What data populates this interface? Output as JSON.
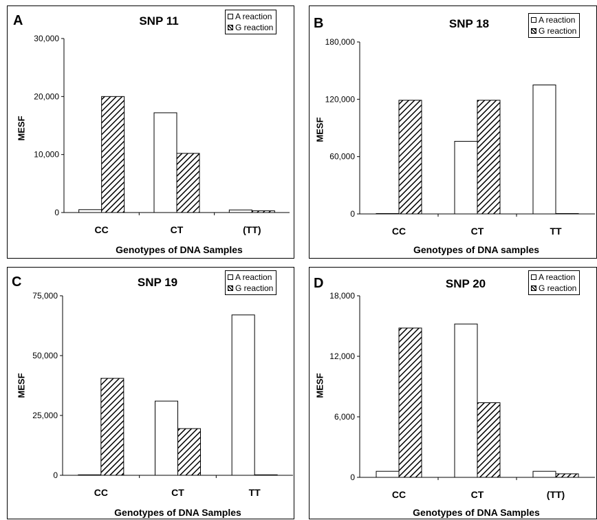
{
  "legend": {
    "a_label": "A reaction",
    "g_label": "G reaction"
  },
  "chart_data": [
    {
      "panel": "A",
      "type": "bar",
      "title": "SNP 11",
      "ylabel": "MESF",
      "xlabel": "Genotypes of DNA Samples",
      "categories": [
        "CC",
        "CT",
        "(TT)"
      ],
      "ylim": [
        0,
        30000
      ],
      "yticks": [
        "0",
        "10,000",
        "20,000",
        "30,000"
      ],
      "series": [
        {
          "name": "A reaction",
          "values": [
            500,
            17200,
            450
          ]
        },
        {
          "name": "G reaction",
          "values": [
            20000,
            10200,
            300
          ]
        }
      ],
      "legend_position": "top-right"
    },
    {
      "panel": "B",
      "type": "bar",
      "title": "SNP 18",
      "ylabel": "MESF",
      "xlabel": "Genotypes of DNA samples",
      "categories": [
        "CC",
        "CT",
        "TT"
      ],
      "ylim": [
        0,
        180000
      ],
      "yticks": [
        "0",
        "60,000",
        "120,000",
        "180,000"
      ],
      "series": [
        {
          "name": "A reaction",
          "values": [
            400,
            76000,
            135000
          ]
        },
        {
          "name": "G reaction",
          "values": [
            119000,
            119000,
            400
          ]
        }
      ],
      "legend_position": "top-right"
    },
    {
      "panel": "C",
      "type": "bar",
      "title": "SNP 19",
      "ylabel": "MESF",
      "xlabel": "Genotypes of DNA Samples",
      "categories": [
        "CC",
        "CT",
        "TT"
      ],
      "ylim": [
        0,
        75000
      ],
      "yticks": [
        "0",
        "25,000",
        "50,000",
        "75,000"
      ],
      "series": [
        {
          "name": "A reaction",
          "values": [
            200,
            31000,
            67000
          ]
        },
        {
          "name": "G reaction",
          "values": [
            40500,
            19500,
            200
          ]
        }
      ],
      "legend_position": "top-right"
    },
    {
      "panel": "D",
      "type": "bar",
      "title": "SNP 20",
      "ylabel": "MESF",
      "xlabel": "Genotypes of DNA Samples",
      "categories": [
        "CC",
        "CT",
        "(TT)"
      ],
      "ylim": [
        0,
        18000
      ],
      "yticks": [
        "0",
        "6,000",
        "12,000",
        "18,000"
      ],
      "series": [
        {
          "name": "A reaction",
          "values": [
            600,
            15200,
            600
          ]
        },
        {
          "name": "G reaction",
          "values": [
            14800,
            7400,
            350
          ]
        }
      ],
      "legend_position": "top-right"
    }
  ]
}
